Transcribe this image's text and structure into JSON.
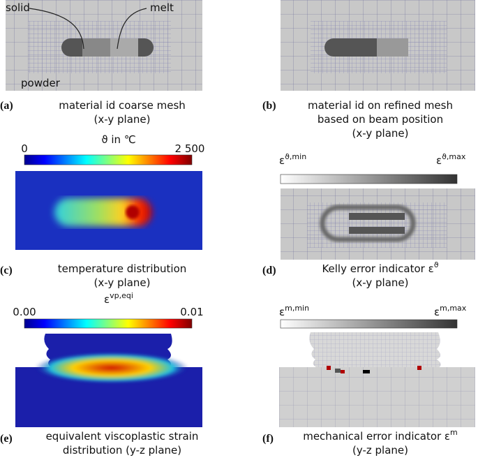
{
  "panels": [
    {
      "label": "(a)",
      "caption": [
        "material id coarse mesh",
        "(x-y plane)"
      ],
      "annotations": [
        "solid",
        "melt",
        "powder"
      ]
    },
    {
      "label": "(b)",
      "caption": [
        "material id on refined mesh",
        "based on beam position",
        "(x-y plane)"
      ]
    },
    {
      "label": "(c)",
      "caption": [
        "temperature distribution",
        "(x-y plane)"
      ],
      "colorbar": {
        "title": "ϑ in ℃",
        "min": "0",
        "max": "2 500"
      }
    },
    {
      "label": "(d)",
      "caption": [
        "Kelly error indicator ε",
        "(x-y plane)"
      ],
      "caption_sup": "ϑ",
      "colorbar": {
        "min": {
          "base": "ε",
          "sup": "ϑ,min"
        },
        "max": {
          "base": "ε",
          "sup": "ϑ,max"
        }
      }
    },
    {
      "label": "(e)",
      "caption": [
        "equivalent viscoplastic strain",
        "distribution (y-z plane)"
      ],
      "colorbar": {
        "title": {
          "base": "ε",
          "sup": "vp,eqi"
        },
        "min": "0.00",
        "max": "0.01"
      }
    },
    {
      "label": "(f)",
      "caption": [
        "mechanical error indicator ε",
        "(y-z plane)"
      ],
      "caption_sup": "m",
      "colorbar": {
        "min": {
          "base": "ε",
          "sup": "m,min"
        },
        "max": {
          "base": "ε",
          "sup": "m,max"
        }
      }
    }
  ]
}
